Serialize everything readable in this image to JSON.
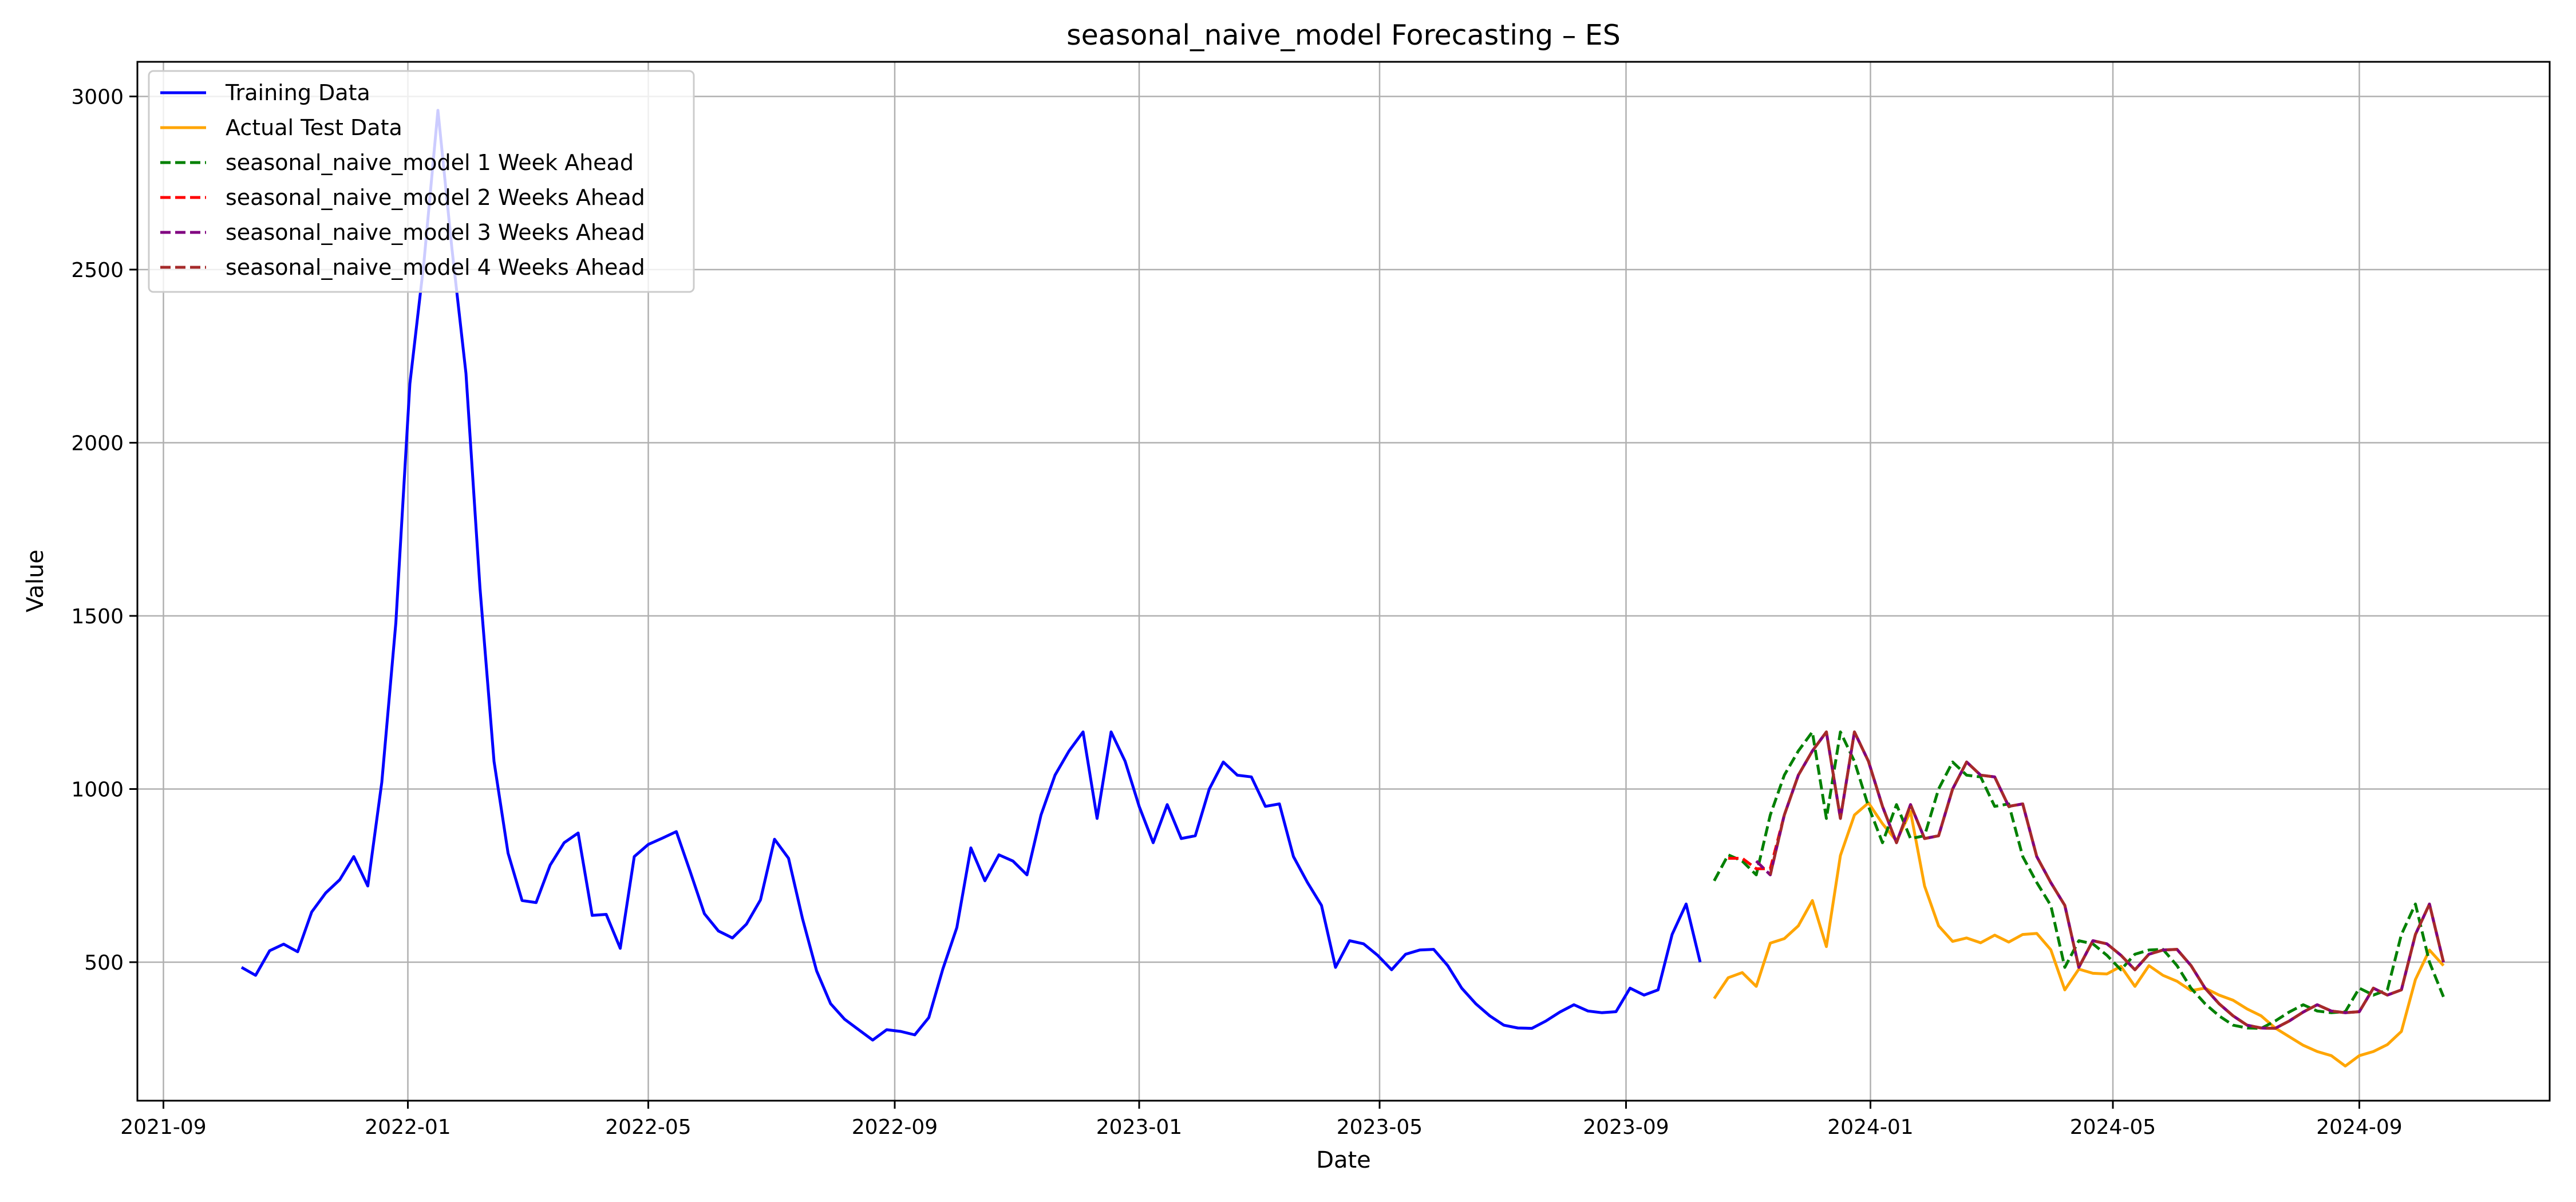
{
  "chart_data": {
    "type": "line",
    "title": "seasonal_naive_model Forecasting – ES",
    "xlabel": "Date",
    "ylabel": "Value",
    "x_ticks": [
      "2021-09",
      "2022-01",
      "2022-05",
      "2022-09",
      "2023-01",
      "2023-05",
      "2023-09",
      "2024-01",
      "2024-05",
      "2024-09"
    ],
    "y_ticks": [
      500,
      1000,
      1500,
      2000,
      2500,
      3000
    ],
    "xlim": [
      "2021-08-19",
      "2024-12-05"
    ],
    "ylim": [
      100,
      3100
    ],
    "grid": true,
    "legend_position": "top-left",
    "series": [
      {
        "name": "Training Data",
        "color": "#0000ff",
        "style": "solid",
        "x": [
          "2021-10-10",
          "2021-10-17",
          "2021-10-24",
          "2021-10-31",
          "2021-11-07",
          "2021-11-14",
          "2021-11-21",
          "2021-11-28",
          "2021-12-05",
          "2021-12-12",
          "2021-12-19",
          "2021-12-26",
          "2022-01-02",
          "2022-01-09",
          "2022-01-16",
          "2022-01-23",
          "2022-01-30",
          "2022-02-06",
          "2022-02-13",
          "2022-02-20",
          "2022-02-27",
          "2022-03-06",
          "2022-03-13",
          "2022-03-20",
          "2022-03-27",
          "2022-04-03",
          "2022-04-10",
          "2022-04-17",
          "2022-04-24",
          "2022-05-01",
          "2022-05-08",
          "2022-05-15",
          "2022-05-22",
          "2022-05-29",
          "2022-06-05",
          "2022-06-12",
          "2022-06-19",
          "2022-06-26",
          "2022-07-03",
          "2022-07-10",
          "2022-07-17",
          "2022-07-24",
          "2022-07-31",
          "2022-08-07",
          "2022-08-14",
          "2022-08-21",
          "2022-08-28",
          "2022-09-04",
          "2022-09-11",
          "2022-09-18",
          "2022-09-25",
          "2022-10-02",
          "2022-10-09",
          "2022-10-16",
          "2022-10-23",
          "2022-10-30",
          "2022-11-06",
          "2022-11-13",
          "2022-11-20",
          "2022-11-27",
          "2022-12-04",
          "2022-12-11",
          "2022-12-18",
          "2022-12-25",
          "2023-01-01",
          "2023-01-08",
          "2023-01-15",
          "2023-01-22",
          "2023-01-29",
          "2023-02-05",
          "2023-02-12",
          "2023-02-19",
          "2023-02-26",
          "2023-03-05",
          "2023-03-12",
          "2023-03-19",
          "2023-03-26",
          "2023-04-02",
          "2023-04-09",
          "2023-04-16",
          "2023-04-23",
          "2023-04-30",
          "2023-05-07",
          "2023-05-14",
          "2023-05-21",
          "2023-05-28",
          "2023-06-04",
          "2023-06-11",
          "2023-06-18",
          "2023-06-25",
          "2023-07-02",
          "2023-07-09",
          "2023-07-16",
          "2023-07-23",
          "2023-07-30",
          "2023-08-06",
          "2023-08-13",
          "2023-08-20",
          "2023-08-27",
          "2023-09-03",
          "2023-09-10",
          "2023-09-17",
          "2023-09-24",
          "2023-10-01",
          "2023-10-08"
        ],
        "y": [
          485,
          462,
          533,
          552,
          530,
          645,
          700,
          738,
          805,
          720,
          1020,
          1480,
          2170,
          2520,
          2960,
          2560,
          2200,
          1580,
          1080,
          815,
          678,
          672,
          780,
          845,
          873,
          635,
          638,
          540,
          805,
          840,
          858,
          877,
          760,
          640,
          590,
          570,
          610,
          680,
          855,
          800,
          625,
          475,
          380,
          335,
          305,
          275,
          305,
          300,
          290,
          340,
          480,
          600,
          830,
          735,
          810,
          792,
          752,
          925,
          1040,
          1110,
          1165,
          915,
          1165,
          1080,
          950,
          845,
          955,
          857,
          865,
          1000,
          1078,
          1040,
          1035,
          950,
          957,
          805,
          730,
          664,
          485,
          562,
          553,
          520,
          478,
          523,
          535,
          537,
          490,
          425,
          380,
          345,
          318,
          310,
          309,
          330,
          356,
          377,
          359,
          354,
          357,
          425,
          405,
          420,
          580,
          668,
          500
        ]
      },
      {
        "name": "Actual Test Data",
        "color": "#ffa500",
        "style": "solid",
        "x": [
          "2023-10-15",
          "2023-10-22",
          "2023-10-29",
          "2023-11-05",
          "2023-11-12",
          "2023-11-19",
          "2023-11-26",
          "2023-12-03",
          "2023-12-10",
          "2023-12-17",
          "2023-12-24",
          "2023-12-31",
          "2024-01-07",
          "2024-01-14",
          "2024-01-21",
          "2024-01-28",
          "2024-02-04",
          "2024-02-11",
          "2024-02-18",
          "2024-02-25",
          "2024-03-03",
          "2024-03-10",
          "2024-03-17",
          "2024-03-24",
          "2024-03-31",
          "2024-04-07",
          "2024-04-14",
          "2024-04-21",
          "2024-04-28",
          "2024-05-05",
          "2024-05-12",
          "2024-05-19",
          "2024-05-26",
          "2024-06-02",
          "2024-06-09",
          "2024-06-16",
          "2024-06-23",
          "2024-06-30",
          "2024-07-07",
          "2024-07-14",
          "2024-07-21",
          "2024-07-28",
          "2024-08-04",
          "2024-08-11",
          "2024-08-18",
          "2024-08-25",
          "2024-09-01",
          "2024-09-08",
          "2024-09-15",
          "2024-09-22",
          "2024-09-29",
          "2024-10-06",
          "2024-10-13"
        ],
        "y": [
          395,
          455,
          470,
          430,
          555,
          568,
          605,
          678,
          545,
          808,
          925,
          960,
          900,
          850,
          935,
          720,
          605,
          560,
          570,
          556,
          578,
          558,
          580,
          583,
          536,
          420,
          480,
          468,
          466,
          488,
          430,
          490,
          462,
          445,
          418,
          425,
          405,
          390,
          365,
          345,
          310,
          285,
          260,
          242,
          230,
          200,
          230,
          242,
          262,
          300,
          450,
          535,
          490
        ]
      },
      {
        "name": "seasonal_naive_model 1 Week Ahead",
        "color": "#008000",
        "style": "dashed",
        "x": [
          "2023-10-15",
          "2023-10-22",
          "2023-10-29",
          "2023-11-05",
          "2023-11-12",
          "2023-11-19",
          "2023-11-26",
          "2023-12-03",
          "2023-12-10",
          "2023-12-17",
          "2023-12-24",
          "2023-12-31",
          "2024-01-07",
          "2024-01-14",
          "2024-01-21",
          "2024-01-28",
          "2024-02-04",
          "2024-02-11",
          "2024-02-18",
          "2024-02-25",
          "2024-03-03",
          "2024-03-10",
          "2024-03-17",
          "2024-03-24",
          "2024-03-31",
          "2024-04-07",
          "2024-04-14",
          "2024-04-21",
          "2024-04-28",
          "2024-05-05",
          "2024-05-12",
          "2024-05-19",
          "2024-05-26",
          "2024-06-02",
          "2024-06-09",
          "2024-06-16",
          "2024-06-23",
          "2024-06-30",
          "2024-07-07",
          "2024-07-14",
          "2024-07-21",
          "2024-07-28",
          "2024-08-04",
          "2024-08-11",
          "2024-08-18",
          "2024-08-25",
          "2024-09-01",
          "2024-09-08",
          "2024-09-15",
          "2024-09-22",
          "2024-09-29",
          "2024-10-06",
          "2024-10-13"
        ],
        "y": [
          735,
          810,
          792,
          752,
          925,
          1040,
          1110,
          1165,
          915,
          1165,
          1080,
          950,
          845,
          955,
          857,
          865,
          1000,
          1078,
          1040,
          1035,
          950,
          957,
          805,
          730,
          664,
          485,
          562,
          553,
          520,
          478,
          523,
          535,
          537,
          490,
          425,
          380,
          345,
          318,
          310,
          309,
          330,
          356,
          377,
          359,
          354,
          357,
          425,
          405,
          420,
          580,
          668,
          500,
          400
        ]
      },
      {
        "name": "seasonal_naive_model 2 Weeks Ahead",
        "color": "#ff0000",
        "style": "dashed",
        "x": [
          "2023-10-22",
          "2023-10-29",
          "2023-11-05",
          "2023-11-12",
          "2023-11-19",
          "2023-11-26",
          "2023-12-03",
          "2023-12-10",
          "2023-12-17",
          "2023-12-24",
          "2023-12-31",
          "2024-01-07",
          "2024-01-14",
          "2024-01-21",
          "2024-01-28",
          "2024-02-04",
          "2024-02-11",
          "2024-02-18",
          "2024-02-25",
          "2024-03-03",
          "2024-03-10",
          "2024-03-17",
          "2024-03-24",
          "2024-03-31",
          "2024-04-07",
          "2024-04-14",
          "2024-04-21",
          "2024-04-28",
          "2024-05-05",
          "2024-05-12",
          "2024-05-19",
          "2024-05-26",
          "2024-06-02",
          "2024-06-09",
          "2024-06-16",
          "2024-06-23",
          "2024-06-30",
          "2024-07-07",
          "2024-07-14",
          "2024-07-21",
          "2024-07-28",
          "2024-08-04",
          "2024-08-11",
          "2024-08-18",
          "2024-08-25",
          "2024-09-01",
          "2024-09-08",
          "2024-09-15",
          "2024-09-22",
          "2024-09-29",
          "2024-10-06",
          "2024-10-13"
        ],
        "y": [
          800,
          800,
          770,
          770,
          925,
          1040,
          1110,
          1165,
          915,
          1165,
          1080,
          950,
          845,
          955,
          857,
          865,
          1000,
          1078,
          1040,
          1035,
          950,
          957,
          805,
          730,
          664,
          485,
          562,
          553,
          520,
          478,
          523,
          535,
          537,
          490,
          425,
          380,
          345,
          318,
          310,
          309,
          330,
          356,
          377,
          359,
          354,
          357,
          425,
          405,
          420,
          580,
          668,
          500
        ]
      },
      {
        "name": "seasonal_naive_model 3 Weeks Ahead",
        "color": "#800080",
        "style": "dashed",
        "x": [
          "2023-11-05",
          "2023-11-12",
          "2023-11-19",
          "2023-11-26",
          "2023-12-03",
          "2023-12-10",
          "2023-12-17",
          "2023-12-24",
          "2023-12-31",
          "2024-01-07",
          "2024-01-14",
          "2024-01-21",
          "2024-01-28",
          "2024-02-04",
          "2024-02-11",
          "2024-02-18",
          "2024-02-25",
          "2024-03-03",
          "2024-03-10",
          "2024-03-17",
          "2024-03-24",
          "2024-03-31",
          "2024-04-07",
          "2024-04-14",
          "2024-04-21",
          "2024-04-28",
          "2024-05-05",
          "2024-05-12",
          "2024-05-19",
          "2024-05-26",
          "2024-06-02",
          "2024-06-09",
          "2024-06-16",
          "2024-06-23",
          "2024-06-30",
          "2024-07-07",
          "2024-07-14",
          "2024-07-21",
          "2024-07-28",
          "2024-08-04",
          "2024-08-11",
          "2024-08-18",
          "2024-08-25",
          "2024-09-01",
          "2024-09-08",
          "2024-09-15",
          "2024-09-22",
          "2024-09-29",
          "2024-10-06",
          "2024-10-13"
        ],
        "y": [
          792,
          752,
          925,
          1040,
          1110,
          1165,
          915,
          1165,
          1080,
          950,
          845,
          955,
          857,
          865,
          1000,
          1078,
          1040,
          1035,
          950,
          957,
          805,
          730,
          664,
          485,
          562,
          553,
          520,
          478,
          523,
          535,
          537,
          490,
          425,
          380,
          345,
          318,
          310,
          309,
          330,
          356,
          377,
          359,
          354,
          357,
          425,
          405,
          420,
          580,
          668,
          500
        ]
      },
      {
        "name": "seasonal_naive_model 4 Weeks Ahead",
        "color": "#a52a2a",
        "style": "dashed",
        "x": [
          "2023-11-12",
          "2023-11-19",
          "2023-11-26",
          "2023-12-03",
          "2023-12-10",
          "2023-12-17",
          "2023-12-24",
          "2023-12-31",
          "2024-01-07",
          "2024-01-14",
          "2024-01-21",
          "2024-01-28",
          "2024-02-04",
          "2024-02-11",
          "2024-02-18",
          "2024-02-25",
          "2024-03-03",
          "2024-03-10",
          "2024-03-17",
          "2024-03-24",
          "2024-03-31",
          "2024-04-07",
          "2024-04-14",
          "2024-04-21",
          "2024-04-28",
          "2024-05-05",
          "2024-05-12",
          "2024-05-19",
          "2024-05-26",
          "2024-06-02",
          "2024-06-09",
          "2024-06-16",
          "2024-06-23",
          "2024-06-30",
          "2024-07-07",
          "2024-07-14",
          "2024-07-21",
          "2024-07-28",
          "2024-08-04",
          "2024-08-11",
          "2024-08-18",
          "2024-08-25",
          "2024-09-01",
          "2024-09-08",
          "2024-09-15",
          "2024-09-22",
          "2024-09-29",
          "2024-10-06",
          "2024-10-13"
        ],
        "y": [
          752,
          925,
          1040,
          1110,
          1165,
          915,
          1165,
          1080,
          950,
          845,
          955,
          857,
          865,
          1000,
          1078,
          1040,
          1035,
          950,
          957,
          805,
          730,
          664,
          485,
          562,
          553,
          520,
          478,
          523,
          535,
          537,
          490,
          425,
          380,
          345,
          318,
          310,
          309,
          330,
          356,
          377,
          359,
          354,
          357,
          425,
          405,
          420,
          580,
          668,
          500
        ]
      }
    ]
  }
}
